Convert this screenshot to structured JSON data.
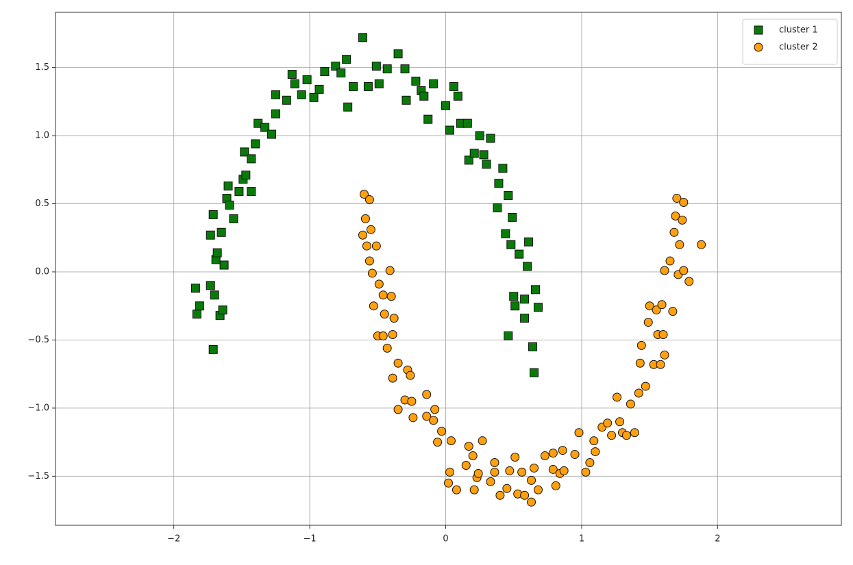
{
  "chart_data": {
    "type": "scatter",
    "xlim": [
      -2.87,
      2.91
    ],
    "ylim": [
      -1.86,
      1.905
    ],
    "xticks": [
      {
        "value": -2,
        "label": "−2"
      },
      {
        "value": -1,
        "label": "−1"
      },
      0,
      1,
      2
    ],
    "yticks": [
      {
        "value": -1.5,
        "label": "−1.5"
      },
      {
        "value": -1.0,
        "label": "−1.0"
      },
      {
        "value": -0.5,
        "label": "−0.5"
      },
      {
        "value": 0,
        "label": "0.0"
      },
      0.5,
      {
        "value": 1.0,
        "label": "1.0"
      },
      1.5
    ],
    "grid": true,
    "legend": "upper right",
    "series": [
      {
        "name": "cluster 1",
        "color": "#0a7a0a",
        "marker": "square",
        "x": [
          -1.84,
          -1.83,
          -1.81,
          -1.73,
          -1.73,
          -1.71,
          -1.71,
          -1.7,
          -1.69,
          -1.68,
          -1.66,
          -1.65,
          -1.64,
          -1.63,
          -1.61,
          -1.6,
          -1.59,
          -1.56,
          -1.52,
          -1.49,
          -1.47,
          -1.48,
          -1.43,
          -1.43,
          -1.4,
          -1.38,
          -1.33,
          -1.28,
          -1.25,
          -1.25,
          -1.17,
          -1.13,
          -1.11,
          -1.06,
          -1.02,
          -0.97,
          -0.93,
          -0.89,
          -0.81,
          -0.77,
          -0.73,
          -0.72,
          -0.68,
          -0.61,
          -0.57,
          -0.51,
          -0.49,
          -0.43,
          -0.35,
          -0.3,
          -0.29,
          -0.22,
          -0.18,
          -0.16,
          -0.13,
          -0.09,
          0,
          0.03,
          0.06,
          0.09,
          0.11,
          0.16,
          0.17,
          0.21,
          0.25,
          0.28,
          0.3,
          0.33,
          0.38,
          0.39,
          0.42,
          0.44,
          0.46,
          0.48,
          0.46,
          0.49,
          0.5,
          0.51,
          0.54,
          0.58,
          0.58,
          0.6,
          0.61,
          0.64,
          0.65,
          0.66,
          0.68
        ],
        "values": [
          -0.12,
          -0.31,
          -0.25,
          -0.1,
          0.27,
          -0.57,
          0.42,
          -0.17,
          0.09,
          0.14,
          -0.32,
          0.29,
          -0.28,
          0.05,
          0.54,
          0.63,
          0.49,
          0.39,
          0.59,
          0.68,
          0.71,
          0.88,
          0.59,
          0.83,
          0.94,
          1.09,
          1.06,
          1.01,
          1.16,
          1.3,
          1.26,
          1.45,
          1.38,
          1.3,
          1.41,
          1.28,
          1.34,
          1.47,
          1.51,
          1.46,
          1.56,
          1.21,
          1.36,
          1.72,
          1.36,
          1.51,
          1.38,
          1.49,
          1.6,
          1.49,
          1.26,
          1.4,
          1.33,
          1.29,
          1.12,
          1.38,
          1.22,
          1.04,
          1.36,
          1.29,
          1.09,
          1.09,
          0.82,
          0.87,
          1.0,
          0.86,
          0.79,
          0.98,
          0.47,
          0.65,
          0.76,
          0.28,
          0.56,
          0.2,
          -0.47,
          0.4,
          -0.18,
          -0.25,
          0.13,
          -0.2,
          -0.34,
          0.04,
          0.22,
          -0.55,
          -0.74,
          -0.13,
          -0.26
        ]
      },
      {
        "name": "cluster 2",
        "color": "#ffa010",
        "marker": "circle",
        "x": [
          -0.6,
          -0.61,
          -0.59,
          -0.58,
          -0.56,
          -0.56,
          -0.55,
          -0.54,
          -0.53,
          -0.51,
          -0.5,
          -0.49,
          -0.46,
          -0.46,
          -0.45,
          -0.43,
          -0.41,
          -0.4,
          -0.39,
          -0.39,
          -0.38,
          -0.35,
          -0.35,
          -0.3,
          -0.28,
          -0.26,
          -0.25,
          -0.24,
          -0.14,
          -0.14,
          -0.09,
          -0.08,
          -0.06,
          -0.03,
          0.02,
          0.03,
          0.04,
          0.08,
          0.15,
          0.17,
          0.2,
          0.21,
          0.23,
          0.24,
          0.27,
          0.33,
          0.36,
          0.36,
          0.4,
          0.45,
          0.47,
          0.51,
          0.53,
          0.56,
          0.58,
          0.63,
          0.63,
          0.65,
          0.68,
          0.73,
          0.79,
          0.79,
          0.81,
          0.84,
          0.86,
          0.87,
          0.95,
          0.98,
          1.03,
          1.06,
          1.09,
          1.1,
          1.15,
          1.19,
          1.22,
          1.26,
          1.28,
          1.3,
          1.33,
          1.36,
          1.39,
          1.42,
          1.43,
          1.44,
          1.47,
          1.49,
          1.5,
          1.53,
          1.55,
          1.56,
          1.58,
          1.59,
          1.6,
          1.61,
          1.61,
          1.65,
          1.67,
          1.68,
          1.69,
          1.7,
          1.71,
          1.72,
          1.74,
          1.75,
          1.75,
          1.79,
          1.88
        ],
        "values": [
          0.57,
          0.27,
          0.39,
          0.19,
          0.53,
          0.08,
          0.31,
          -0.01,
          -0.25,
          0.19,
          -0.47,
          -0.09,
          -0.47,
          -0.17,
          -0.31,
          -0.56,
          0.01,
          -0.18,
          -0.78,
          -0.46,
          -0.34,
          -0.67,
          -1.01,
          -0.94,
          -0.72,
          -0.76,
          -0.95,
          -1.07,
          -0.9,
          -1.06,
          -1.09,
          -1.01,
          -1.25,
          -1.17,
          -1.55,
          -1.47,
          -1.24,
          -1.6,
          -1.42,
          -1.28,
          -1.35,
          -1.6,
          -1.51,
          -1.48,
          -1.24,
          -1.54,
          -1.4,
          -1.47,
          -1.64,
          -1.59,
          -1.46,
          -1.36,
          -1.63,
          -1.47,
          -1.64,
          -1.53,
          -1.69,
          -1.44,
          -1.6,
          -1.35,
          -1.33,
          -1.45,
          -1.57,
          -1.48,
          -1.31,
          -1.46,
          -1.34,
          -1.18,
          -1.47,
          -1.4,
          -1.24,
          -1.32,
          -1.14,
          -1.11,
          -1.2,
          -0.92,
          -1.1,
          -1.18,
          -1.2,
          -0.97,
          -1.18,
          -0.89,
          -0.67,
          -0.54,
          -0.84,
          -0.37,
          -0.25,
          -0.68,
          -0.28,
          -0.46,
          -0.68,
          -0.24,
          -0.46,
          0.01,
          -0.61,
          0.08,
          -0.29,
          0.29,
          0.41,
          0.54,
          -0.02,
          0.2,
          0.38,
          0.51,
          0.01,
          -0.07,
          0.2
        ]
      }
    ]
  }
}
